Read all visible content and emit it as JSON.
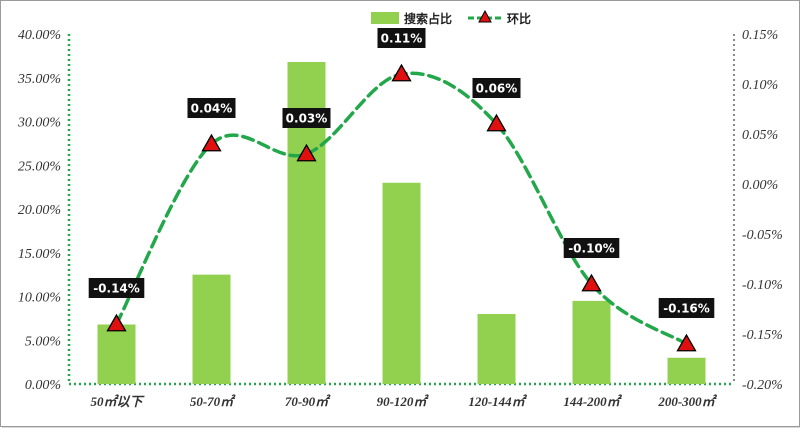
{
  "chart_data": {
    "type": "bar",
    "categories": [
      "50㎡以下",
      "50-70㎡",
      "70-90㎡",
      "90-120㎡",
      "120-144㎡",
      "144-200㎡",
      "200-300㎡"
    ],
    "series": [
      {
        "name": "搜索占比",
        "type": "bar",
        "axis": "left",
        "values": [
          6.8,
          12.5,
          36.8,
          23.0,
          8.0,
          9.5,
          3.0
        ],
        "color": "#92D050"
      },
      {
        "name": "环比",
        "type": "line",
        "axis": "right",
        "values": [
          -0.14,
          0.04,
          0.03,
          0.11,
          0.06,
          -0.1,
          -0.16
        ],
        "labels": [
          "-0.14%",
          "0.04%",
          "0.03%",
          "0.11%",
          "0.06%",
          "-0.10%",
          "-0.16%"
        ],
        "color": "#22A84A",
        "marker": "triangle",
        "marker_color": "#E01010"
      }
    ],
    "ylim_left": [
      0,
      40
    ],
    "yticks_left": [
      "0.00%",
      "5.00%",
      "10.00%",
      "15.00%",
      "20.00%",
      "25.00%",
      "30.00%",
      "35.00%",
      "40.00%"
    ],
    "ylim_right": [
      -0.2,
      0.15
    ],
    "yticks_right": [
      "-0.20%",
      "-0.15%",
      "-0.10%",
      "-0.05%",
      "0.00%",
      "0.05%",
      "0.10%",
      "0.15%"
    ],
    "legend": {
      "position": "top",
      "items": [
        "搜索占比",
        "环比"
      ]
    },
    "grid": false
  }
}
